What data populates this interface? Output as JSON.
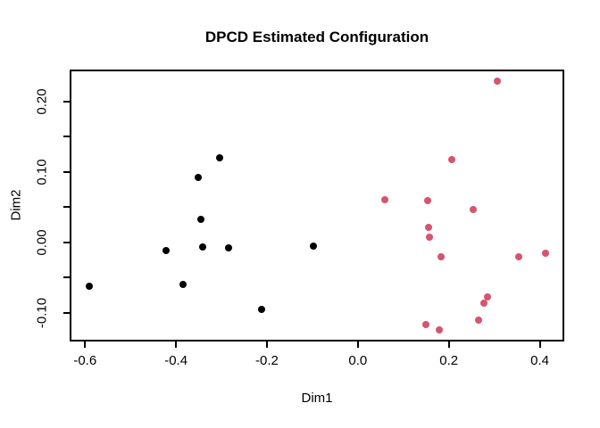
{
  "chart_data": {
    "type": "scatter",
    "title": "DPCD Estimated Configuration",
    "xlabel": "Dim1",
    "ylabel": "Dim2",
    "xlim": [
      -0.63,
      0.45
    ],
    "ylim": [
      -0.1385,
      0.243
    ],
    "grid": false,
    "legend": "none",
    "x_ticks": [
      -0.6,
      -0.4,
      -0.2,
      0.0,
      0.2,
      0.4
    ],
    "x_tick_labels": [
      "-0.6",
      "-0.4",
      "-0.2",
      "0.0",
      "0.2",
      "0.4"
    ],
    "y_ticks_major": [
      0.2,
      0.1,
      0.0,
      -0.1
    ],
    "y_tick_labels": [
      "0.20",
      "0.10",
      "0.00",
      "-0.10"
    ],
    "y_ticks_minor": [
      0.15,
      0.05,
      -0.05
    ],
    "series": [
      {
        "name": "black-group",
        "color": "#000000",
        "points": [
          [
            -0.59,
            -0.062
          ],
          [
            -0.421,
            -0.012
          ],
          [
            -0.384,
            -0.06
          ],
          [
            -0.352,
            0.092
          ],
          [
            -0.346,
            0.032
          ],
          [
            -0.342,
            -0.007
          ],
          [
            -0.304,
            0.12
          ],
          [
            -0.284,
            -0.008
          ],
          [
            -0.211,
            -0.096
          ],
          [
            -0.097,
            -0.005
          ]
        ]
      },
      {
        "name": "pink-group",
        "color": "#D5546E",
        "points": [
          [
            0.306,
            0.229
          ],
          [
            0.206,
            0.117
          ],
          [
            0.059,
            0.061
          ],
          [
            0.153,
            0.059
          ],
          [
            0.254,
            0.046
          ],
          [
            0.156,
            0.021
          ],
          [
            0.158,
            0.007
          ],
          [
            0.182,
            -0.02
          ],
          [
            0.354,
            -0.02
          ],
          [
            0.412,
            -0.015
          ],
          [
            0.285,
            -0.078
          ],
          [
            0.277,
            -0.087
          ],
          [
            0.265,
            -0.111
          ],
          [
            0.15,
            -0.117
          ],
          [
            0.179,
            -0.125
          ]
        ]
      }
    ]
  }
}
